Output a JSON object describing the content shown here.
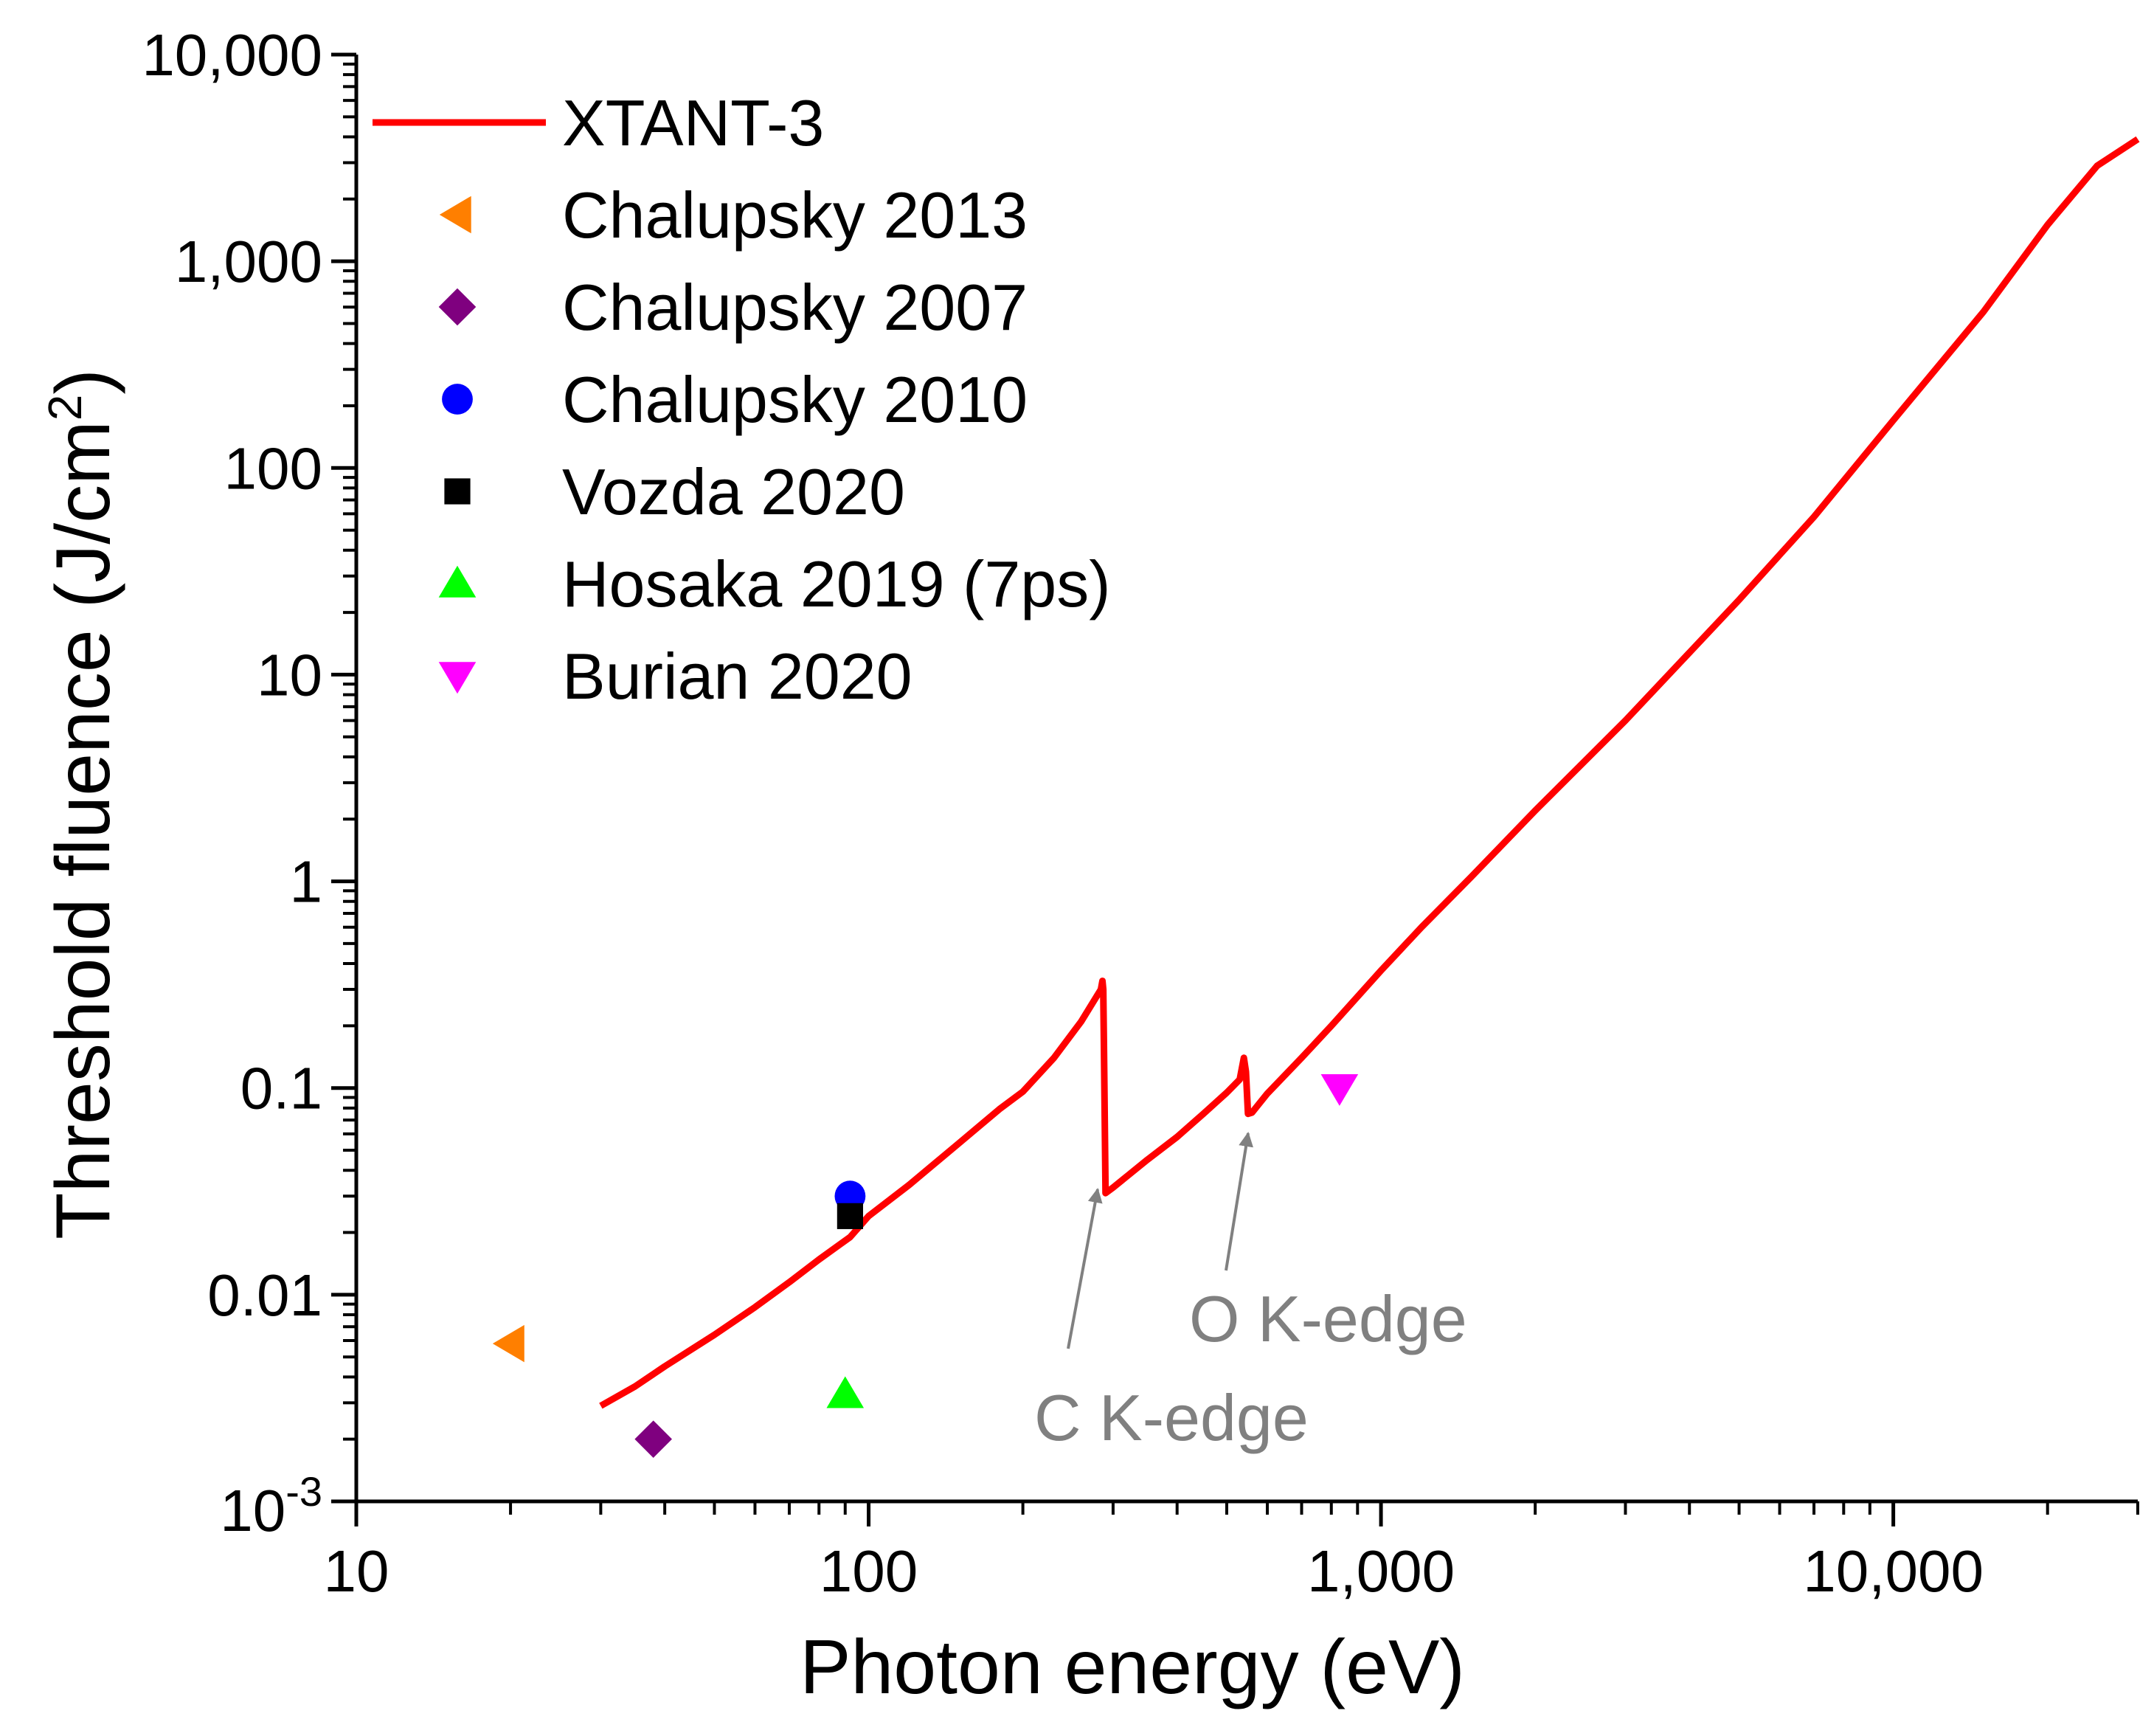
{
  "chart_data": {
    "type": "scatter",
    "xlabel": "Photon energy (eV)",
    "ylabel": "Threshold fluence (J/cm",
    "ylabel_sup": "2",
    "ylabel_close": ")",
    "xscale": "log",
    "yscale": "log",
    "xlim": [
      10,
      30000
    ],
    "ylim": [
      0.001,
      10000
    ],
    "x_ticks": [
      {
        "value": 10,
        "label": "10"
      },
      {
        "value": 100,
        "label": "100"
      },
      {
        "value": 1000,
        "label": "1,000"
      },
      {
        "value": 10000,
        "label": "10,000"
      }
    ],
    "y_ticks": [
      {
        "value": 0.001,
        "label": "10",
        "sup": "-3"
      },
      {
        "value": 0.01,
        "label": "0.01"
      },
      {
        "value": 0.1,
        "label": "0.1"
      },
      {
        "value": 1,
        "label": "1"
      },
      {
        "value": 10,
        "label": "10"
      },
      {
        "value": 100,
        "label": "100"
      },
      {
        "value": 1000,
        "label": "1,000"
      },
      {
        "value": 10000,
        "label": "10,000"
      }
    ],
    "legend_position": "top-left",
    "series": [
      {
        "name": "XTANT-3",
        "kind": "line",
        "color": "#ff0000",
        "points": [
          [
            30,
            0.0029
          ],
          [
            35,
            0.0036
          ],
          [
            40,
            0.0045
          ],
          [
            50,
            0.0064
          ],
          [
            60,
            0.0087
          ],
          [
            70,
            0.0115
          ],
          [
            80,
            0.0148
          ],
          [
            92,
            0.019
          ],
          [
            100,
            0.024
          ],
          [
            120,
            0.034
          ],
          [
            150,
            0.054
          ],
          [
            180,
            0.079
          ],
          [
            200,
            0.096
          ],
          [
            230,
            0.14
          ],
          [
            260,
            0.21
          ],
          [
            284,
            0.3
          ],
          [
            286,
            0.33
          ],
          [
            287,
            0.3
          ],
          [
            288,
            0.15
          ],
          [
            290,
            0.031
          ],
          [
            300,
            0.033
          ],
          [
            350,
            0.045
          ],
          [
            400,
            0.058
          ],
          [
            450,
            0.075
          ],
          [
            500,
            0.095
          ],
          [
            530,
            0.11
          ],
          [
            540,
            0.14
          ],
          [
            545,
            0.12
          ],
          [
            550,
            0.075
          ],
          [
            560,
            0.076
          ],
          [
            600,
            0.094
          ],
          [
            700,
            0.14
          ],
          [
            800,
            0.2
          ],
          [
            1000,
            0.37
          ],
          [
            1200,
            0.6
          ],
          [
            1500,
            1.05
          ],
          [
            2000,
            2.2
          ],
          [
            3000,
            6
          ],
          [
            5000,
            23
          ],
          [
            7000,
            58
          ],
          [
            10000,
            170
          ],
          [
            15000,
            570
          ],
          [
            20000,
            1500
          ],
          [
            25000,
            2900
          ],
          [
            30000,
            3900
          ]
        ]
      },
      {
        "name": "Chalupsky 2013",
        "kind": "marker",
        "marker": "triangle-left",
        "color": "#ff7f00",
        "points": [
          [
            20,
            0.0058
          ]
        ]
      },
      {
        "name": "Chalupsky 2007",
        "kind": "marker",
        "marker": "diamond",
        "color": "#7f007f",
        "points": [
          [
            38,
            0.002
          ]
        ]
      },
      {
        "name": "Chalupsky 2010",
        "kind": "marker",
        "marker": "circle",
        "color": "#0000ff",
        "points": [
          [
            92,
            0.03
          ]
        ]
      },
      {
        "name": "Vozda 2020",
        "kind": "marker",
        "marker": "square",
        "color": "#000000",
        "points": [
          [
            92,
            0.024
          ]
        ]
      },
      {
        "name": "Hosaka 2019 (7ps)",
        "kind": "marker",
        "marker": "triangle-up",
        "color": "#00ff00",
        "points": [
          [
            90,
            0.0033
          ]
        ]
      },
      {
        "name": "Burian 2020",
        "kind": "marker",
        "marker": "triangle-down",
        "color": "#ff00ff",
        "points": [
          [
            830,
            0.1
          ]
        ]
      }
    ],
    "annotations": [
      {
        "text": "C K-edge",
        "target": [
          290,
          0.031
        ],
        "text_at": [
          280,
          0.0019
        ]
      },
      {
        "text": "O K-edge",
        "target": [
          550,
          0.075
        ],
        "text_at": [
          520,
          0.0056
        ]
      }
    ],
    "annotation_color": "#808080"
  }
}
